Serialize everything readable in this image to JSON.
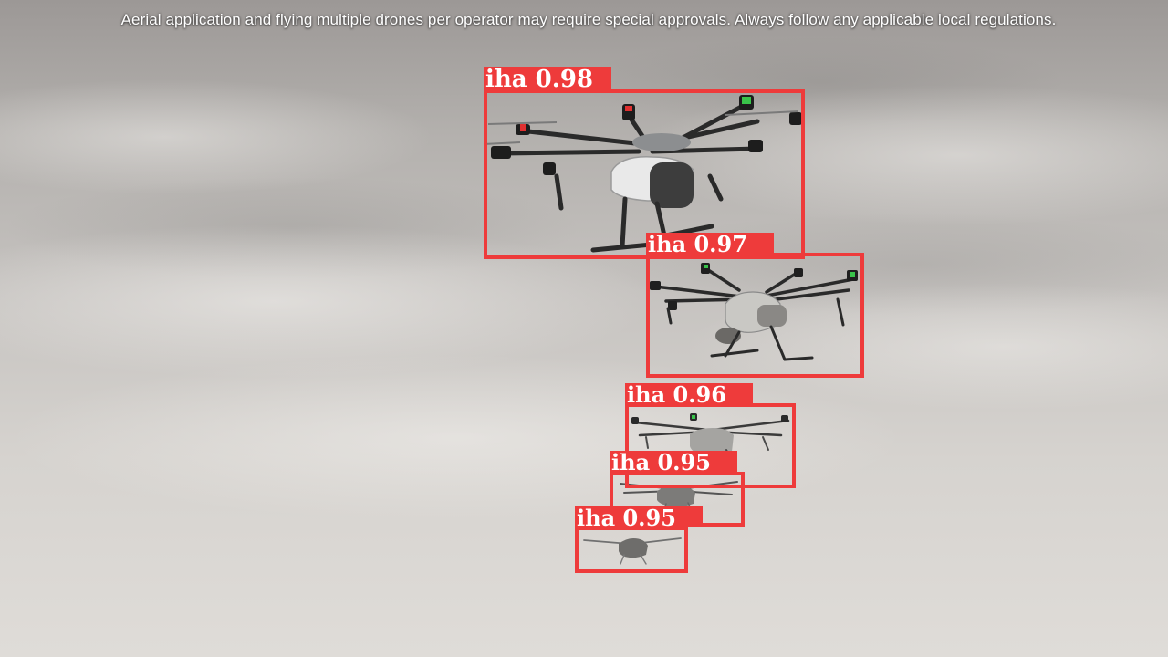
{
  "caption": "Aerial application and flying multiple drones per operator may require special approvals.  Always follow any applicable local regulations.",
  "detections": [
    {
      "class": "iha",
      "score": "0.98",
      "text": "iha 0.98"
    },
    {
      "class": "iha",
      "score": "0.97",
      "text": "iha 0.97"
    },
    {
      "class": "iha",
      "score": "0.96",
      "text": "iha 0.96"
    },
    {
      "class": "iha",
      "score": "0.95",
      "text": "iha 0.95"
    },
    {
      "class": "iha",
      "score": "0.95",
      "text": "iha 0.95"
    }
  ],
  "colors": {
    "box": "#ee3b3b",
    "label_text": "#ffffff",
    "caption_text": "#ffffff"
  }
}
